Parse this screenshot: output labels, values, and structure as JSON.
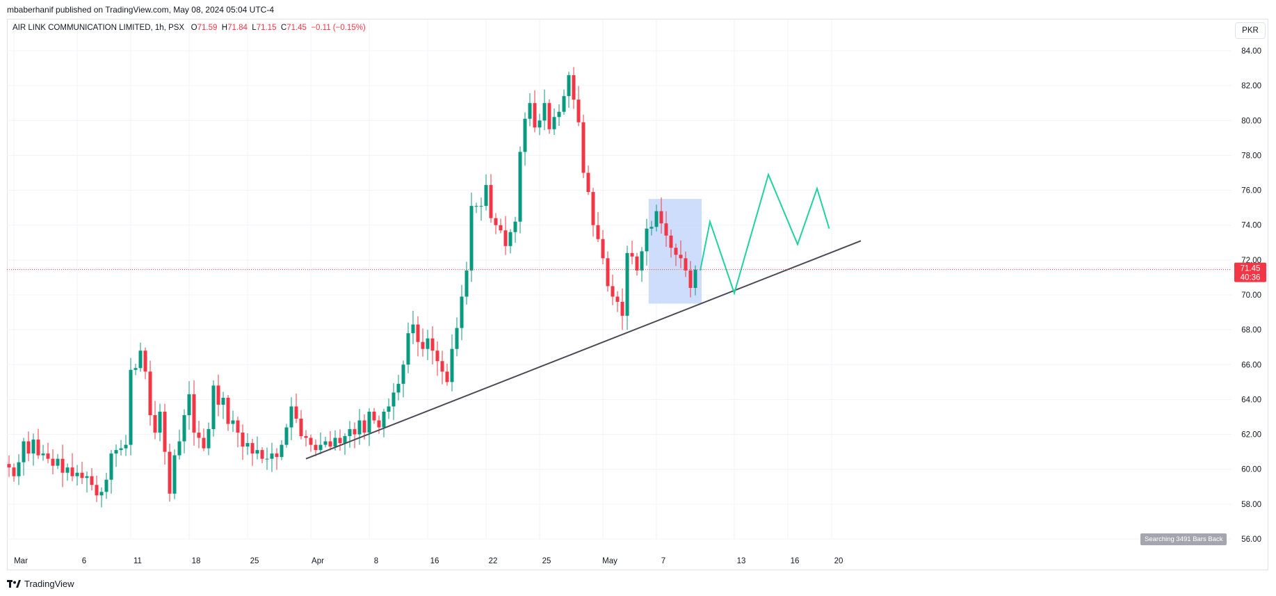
{
  "header": {
    "published_line": "mbaberhanif published on TradingView.com, May 08, 2024 05:04 UTC-4"
  },
  "legend": {
    "symbol_line": "AIR LINK COMMUNICATION LIMITED, 1h, PSX",
    "open_label": "O",
    "open_value": "71.59",
    "high_label": "H",
    "high_value": "71.84",
    "low_label": "L",
    "low_value": "71.15",
    "close_label": "C",
    "close_value": "71.45",
    "change": "−0.11 (−0.15%)"
  },
  "currency_button": "PKR",
  "last_price": {
    "price": "71.45",
    "countdown": "40:36"
  },
  "search_badge": "Searching 3491 Bars Back",
  "footer": {
    "brand": "TradingView"
  },
  "colors": {
    "up": "#089981",
    "down": "#f23645",
    "projection": "#1ed3a0",
    "trendline": "#4a4a55",
    "box": "#c7d7fb",
    "grid": "#f0f3fa",
    "axis_text": "#131722"
  },
  "chart_data": {
    "type": "candlestick",
    "title": "AIR LINK COMMUNICATION LIMITED, 1h, PSX",
    "ylim": [
      55,
      85
    ],
    "y_ticks": [
      "56.00",
      "58.00",
      "60.00",
      "62.00",
      "64.00",
      "66.00",
      "68.00",
      "70.00",
      "72.00",
      "74.00",
      "76.00",
      "78.00",
      "80.00",
      "82.00",
      "84.00"
    ],
    "x_ticks": [
      {
        "label": "Mar",
        "bar": 1
      },
      {
        "label": "6",
        "bar": 14
      },
      {
        "label": "11",
        "bar": 25
      },
      {
        "label": "18",
        "bar": 37
      },
      {
        "label": "25",
        "bar": 49
      },
      {
        "label": "Apr",
        "bar": 62
      },
      {
        "label": "8",
        "bar": 74
      },
      {
        "label": "16",
        "bar": 86
      },
      {
        "label": "22",
        "bar": 98
      },
      {
        "label": "25",
        "bar": 109
      },
      {
        "label": "May",
        "bar": 122
      },
      {
        "label": "7",
        "bar": 133
      },
      {
        "label": "13",
        "bar": 149
      },
      {
        "label": "16",
        "bar": 160
      },
      {
        "label": "20",
        "bar": 169
      }
    ],
    "close_series": [
      60.1,
      59.6,
      60.4,
      61.6,
      60.9,
      61.7,
      60.8,
      60.9,
      60.6,
      60.2,
      60.6,
      59.8,
      60.1,
      59.6,
      59.8,
      59.5,
      59.6,
      59.1,
      58.5,
      58.7,
      59.4,
      60.9,
      61.1,
      61.2,
      61.4,
      65.7,
      65.8,
      66.8,
      65.6,
      63.1,
      62.1,
      63.3,
      61.0,
      58.6,
      60.8,
      61.6,
      63.1,
      64.3,
      62.1,
      61.8,
      61.2,
      62.3,
      64.8,
      63.7,
      64.1,
      62.6,
      62.8,
      62.1,
      61.3,
      61.5,
      60.9,
      61.1,
      60.6,
      60.6,
      60.9,
      60.7,
      61.4,
      62.4,
      63.6,
      62.9,
      61.9,
      61.8,
      61.4,
      61.1,
      61.4,
      61.6,
      61.3,
      61.8,
      61.5,
      61.9,
      62.3,
      62.0,
      62.8,
      62.1,
      63.3,
      62.8,
      62.4,
      63.3,
      63.6,
      64.4,
      64.9,
      66.0,
      67.8,
      68.3,
      67.3,
      66.9,
      67.5,
      66.8,
      66.2,
      65.6,
      65.0,
      66.9,
      68.1,
      69.9,
      71.4,
      75.1,
      75.1,
      75.1,
      76.3,
      74.4,
      74.0,
      73.7,
      72.8,
      73.6,
      74.2,
      78.2,
      80.1,
      81.0,
      79.6,
      80.0,
      81.0,
      79.5,
      80.2,
      80.5,
      81.4,
      82.6,
      81.2,
      79.9,
      77.0,
      75.9,
      74.0,
      73.2,
      72.1,
      70.5,
      69.9,
      69.6,
      68.8,
      72.4,
      72.2,
      71.4,
      72.5,
      73.8,
      73.9,
      74.8,
      74.1,
      73.4,
      72.7,
      72.3,
      72.1,
      71.4,
      70.4,
      71.45
    ],
    "series": [
      {
        "type": "trendline",
        "points": [
          {
            "bar": 61,
            "price": 60.6
          },
          {
            "bar": 175,
            "price": 73.1
          }
        ]
      },
      {
        "type": "projection",
        "points": [
          {
            "bar": 142,
            "price": 71.4
          },
          {
            "bar": 144,
            "price": 74.2
          },
          {
            "bar": 149,
            "price": 70.1
          },
          {
            "bar": 156,
            "price": 76.9
          },
          {
            "bar": 162,
            "price": 72.9
          },
          {
            "bar": 166,
            "price": 76.1
          },
          {
            "bar": 168.5,
            "price": 73.8
          }
        ]
      },
      {
        "type": "box",
        "points": [
          {
            "bar": 131.4,
            "price": 75.5
          },
          {
            "bar": 142.3,
            "price": 69.5
          }
        ]
      }
    ],
    "last_price": 71.45,
    "grid": true
  }
}
